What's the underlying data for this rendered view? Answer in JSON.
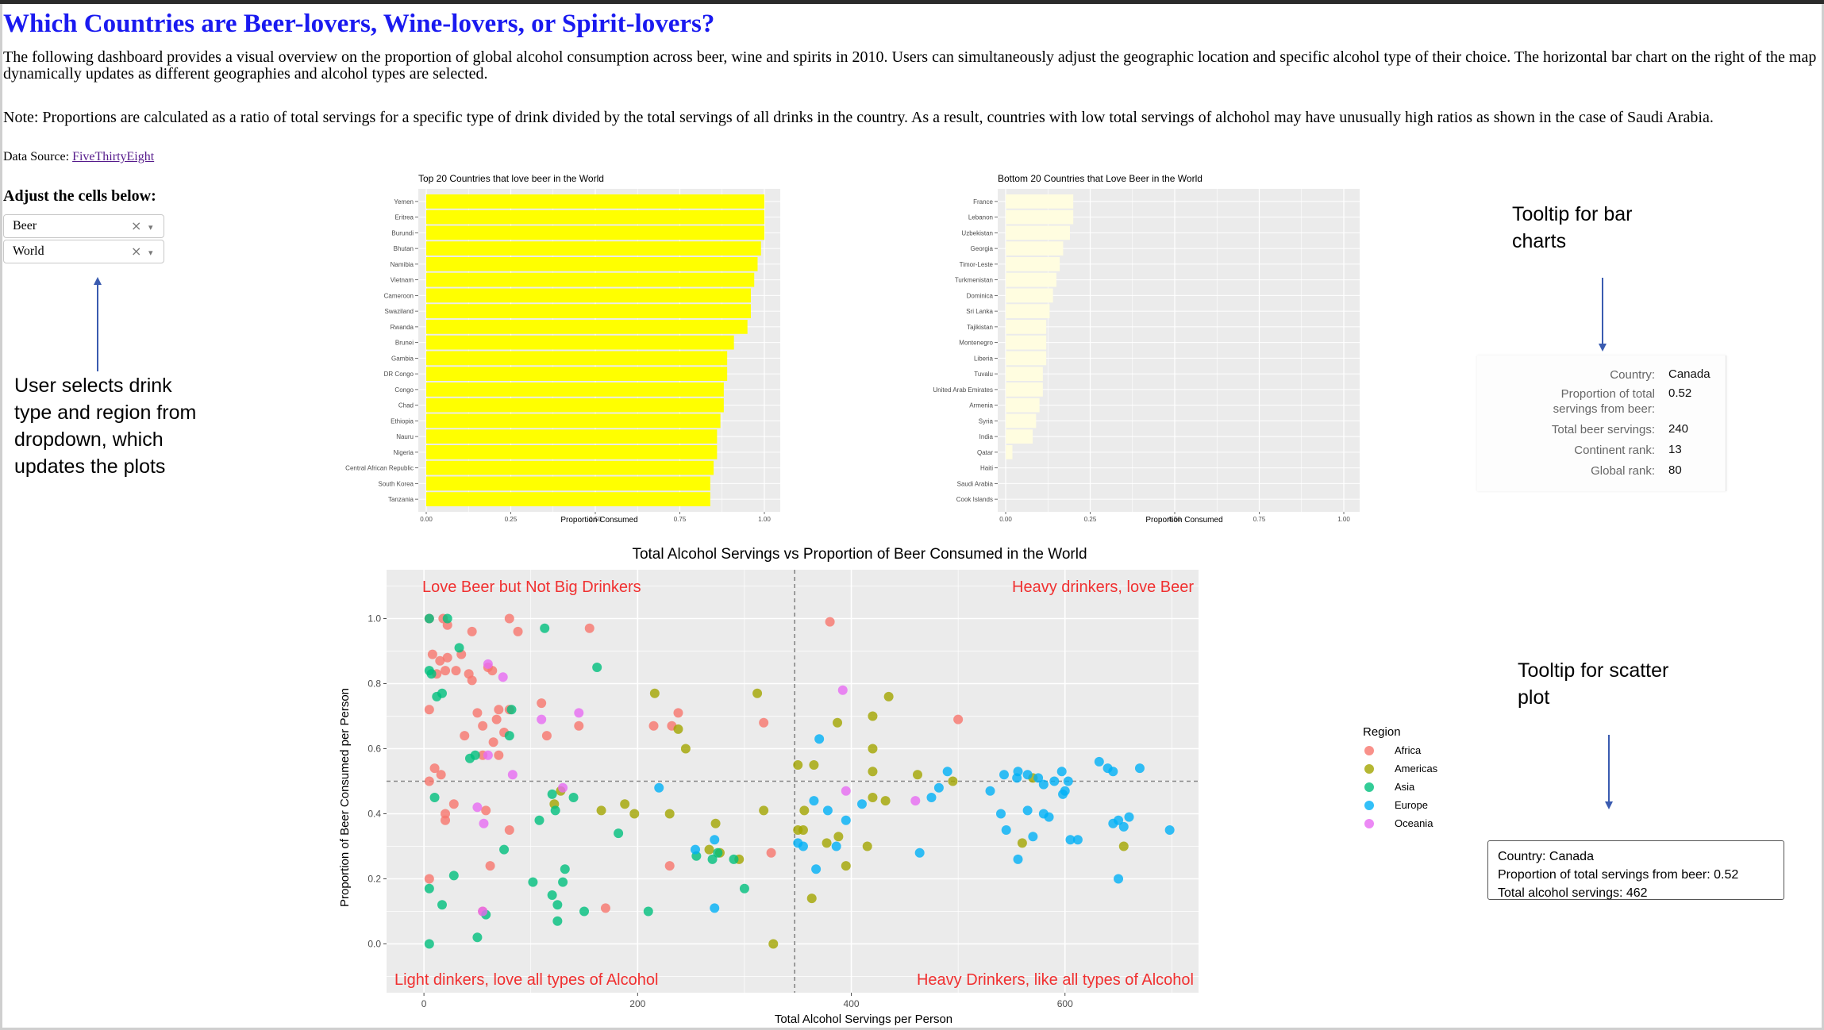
{
  "page": {
    "title": "Which Countries are Beer-lovers, Wine-lovers, or Spirit-lovers?",
    "description": "The following dashboard provides a visual overview on the proportion of global alcohol consumption across beer, wine and spirits in 2010. Users can simultaneously adjust the geographic location and specific alcohol type of their choice. The horizontal bar chart on the right of the map dynamically updates as different geographies and alcohol types are selected.",
    "note": "Note: Proportions are calculated as a ratio of total servings for a specific type of drink divided by the total servings of all drinks in the country. As a result, countries with low total servings of alchohol may have unusually high ratios as shown in the case of Saudi Arabia.",
    "source_label": "Data Source:",
    "source_link": "FiveThirtyEight",
    "adjust_label": "Adjust the cells below:"
  },
  "controls": {
    "drink": {
      "value": "Beer",
      "clear_glyph": "×",
      "caret_glyph": "▾"
    },
    "region": {
      "value": "World",
      "clear_glyph": "×",
      "caret_glyph": "▾"
    }
  },
  "annotations": {
    "user": "User selects drink type and region from dropdown, which updates the plots",
    "bar_tooltip": "Tooltip for bar charts",
    "scatter_tooltip": "Tooltip for scatter plot"
  },
  "bar_tooltip": {
    "rows": [
      {
        "key": "Country:",
        "value": "Canada"
      },
      {
        "key": "Proportion of total servings from beer:",
        "value": "0.52"
      },
      {
        "key": "Total beer servings:",
        "value": "240"
      },
      {
        "key": "Continent rank:",
        "value": "13"
      },
      {
        "key": "Global rank:",
        "value": "80"
      }
    ]
  },
  "scatter_tooltip": {
    "lines": [
      "Country: Canada",
      "Proportion of total servings from beer: 0.52",
      "Total alcohol servings:  462"
    ]
  },
  "colors": {
    "title": "#1a1af0",
    "panel_bg": "#ebebeb",
    "top_bar": "#ffff00",
    "bottom_bar": "#fffde0",
    "quadrant_text": "#f03030",
    "Africa": "#f8766d",
    "Americas": "#a3a500",
    "Asia": "#00bf7d",
    "Europe": "#00b0f6",
    "Oceania": "#e76bf3"
  },
  "chart_data": [
    {
      "type": "bar",
      "orientation": "horizontal",
      "title": "Top 20 Countries that love beer in the World",
      "xlabel": "Proportion Consumed",
      "ylabel": "",
      "xlim": [
        0,
        1
      ],
      "xticks": [
        "0.00",
        "0.25",
        "0.50",
        "0.75",
        "1.00"
      ],
      "categories": [
        "Yemen",
        "Eritrea",
        "Burundi",
        "Bhutan",
        "Namibia",
        "Vietnam",
        "Cameroon",
        "Swaziland",
        "Rwanda",
        "Brunei",
        "Gambia",
        "DR Congo",
        "Congo",
        "Chad",
        "Ethiopia",
        "Nauru",
        "Nigeria",
        "Central African Republic",
        "South Korea",
        "Tanzania"
      ],
      "values": [
        1.0,
        1.0,
        1.0,
        0.99,
        0.98,
        0.97,
        0.96,
        0.96,
        0.95,
        0.91,
        0.89,
        0.89,
        0.88,
        0.88,
        0.87,
        0.86,
        0.86,
        0.85,
        0.84,
        0.84
      ],
      "grid": true
    },
    {
      "type": "bar",
      "orientation": "horizontal",
      "title": "Bottom 20 Countries that Love Beer in the World",
      "xlabel": "Proportion Consumed",
      "ylabel": "",
      "xlim": [
        0,
        1
      ],
      "xticks": [
        "0.00",
        "0.25",
        "0.50",
        "0.75",
        "1.00"
      ],
      "categories": [
        "France",
        "Lebanon",
        "Uzbekistan",
        "Georgia",
        "Timor-Leste",
        "Turkmenistan",
        "Dominica",
        "Sri Lanka",
        "Tajikistan",
        "Montenegro",
        "Liberia",
        "Tuvalu",
        "United Arab Emirates",
        "Armenia",
        "Syria",
        "India",
        "Qatar",
        "Haiti",
        "Saudi Arabia",
        "Cook Islands"
      ],
      "values": [
        0.2,
        0.2,
        0.19,
        0.17,
        0.16,
        0.15,
        0.14,
        0.13,
        0.12,
        0.12,
        0.12,
        0.11,
        0.11,
        0.1,
        0.09,
        0.08,
        0.02,
        0.0,
        0.0,
        0.0
      ],
      "grid": true
    },
    {
      "type": "scatter",
      "title": "Total Alcohol Servings vs Proportion of Beer Consumed in the World",
      "xlabel": "Total Alcohol Servings per Person",
      "ylabel": "Proportion of Beer Consumed per Person",
      "xlim": [
        -35,
        725
      ],
      "ylim": [
        -0.15,
        1.15
      ],
      "xticks": [
        0,
        200,
        400,
        600
      ],
      "yticks": [
        "0.0",
        "0.2",
        "0.4",
        "0.6",
        "0.8",
        "1.0"
      ],
      "ref_lines": {
        "x": 347,
        "y": 0.5
      },
      "quadrant_labels": {
        "top_left": "Love Beer but Not Big Drinkers",
        "top_right": "Heavy drinkers, love Beer",
        "bottom_left": "Light dinkers, love all types of Alcohol",
        "bottom_right": "Heavy Drinkers, like all types of Alcohol"
      },
      "legend_title": "Region",
      "legend_position": "right",
      "series": [
        {
          "name": "Africa",
          "points": [
            [
              5,
              1.0
            ],
            [
              18,
              1.0
            ],
            [
              22,
              0.98
            ],
            [
              80,
              1.0
            ],
            [
              88,
              0.96
            ],
            [
              155,
              0.97
            ],
            [
              380,
              0.99
            ],
            [
              8,
              0.89
            ],
            [
              15,
              0.87
            ],
            [
              20,
              0.84
            ],
            [
              22,
              0.88
            ],
            [
              30,
              0.84
            ],
            [
              35,
              0.89
            ],
            [
              42,
              0.83
            ],
            [
              45,
              0.96
            ],
            [
              60,
              0.85
            ],
            [
              64,
              0.84
            ],
            [
              5,
              0.72
            ],
            [
              12,
              0.83
            ],
            [
              45,
              0.81
            ],
            [
              50,
              0.71
            ],
            [
              55,
              0.67
            ],
            [
              68,
              0.69
            ],
            [
              70,
              0.72
            ],
            [
              75,
              0.65
            ],
            [
              80,
              0.72
            ],
            [
              110,
              0.74
            ],
            [
              115,
              0.64
            ],
            [
              145,
              0.67
            ],
            [
              238,
              0.71
            ],
            [
              215,
              0.67
            ],
            [
              232,
              0.67
            ],
            [
              318,
              0.68
            ],
            [
              500,
              0.69
            ],
            [
              38,
              0.64
            ],
            [
              65,
              0.62
            ],
            [
              5,
              0.5
            ],
            [
              10,
              0.54
            ],
            [
              16,
              0.52
            ],
            [
              55,
              0.58
            ],
            [
              70,
              0.58
            ],
            [
              20,
              0.4
            ],
            [
              28,
              0.43
            ],
            [
              58,
              0.41
            ],
            [
              80,
              0.35
            ],
            [
              20,
              0.38
            ],
            [
              62,
              0.24
            ],
            [
              230,
              0.24
            ],
            [
              325,
              0.28
            ],
            [
              5,
              0.2
            ],
            [
              170,
              0.11
            ],
            [
              55,
              0.1
            ]
          ]
        },
        {
          "name": "Americas",
          "points": [
            [
              216,
              0.77
            ],
            [
              312,
              0.77
            ],
            [
              435,
              0.76
            ],
            [
              420,
              0.7
            ],
            [
              387,
              0.68
            ],
            [
              238,
              0.66
            ],
            [
              245,
              0.6
            ],
            [
              420,
              0.6
            ],
            [
              350,
              0.55
            ],
            [
              365,
              0.55
            ],
            [
              420,
              0.53
            ],
            [
              462,
              0.52
            ],
            [
              495,
              0.5
            ],
            [
              570,
              0.51
            ],
            [
              128,
              0.47
            ],
            [
              122,
              0.43
            ],
            [
              166,
              0.41
            ],
            [
              188,
              0.43
            ],
            [
              197,
              0.4
            ],
            [
              230,
              0.4
            ],
            [
              273,
              0.37
            ],
            [
              318,
              0.41
            ],
            [
              356,
              0.41
            ],
            [
              420,
              0.45
            ],
            [
              432,
              0.44
            ],
            [
              350,
              0.35
            ],
            [
              355,
              0.35
            ],
            [
              377,
              0.31
            ],
            [
              388,
              0.33
            ],
            [
              267,
              0.29
            ],
            [
              277,
              0.28
            ],
            [
              295,
              0.26
            ],
            [
              395,
              0.24
            ],
            [
              415,
              0.3
            ],
            [
              560,
              0.31
            ],
            [
              655,
              0.3
            ],
            [
              363,
              0.14
            ],
            [
              327,
              0.0
            ]
          ]
        },
        {
          "name": "Asia",
          "points": [
            [
              5,
              1.0
            ],
            [
              22,
              1.0
            ],
            [
              113,
              0.97
            ],
            [
              33,
              0.91
            ],
            [
              162,
              0.85
            ],
            [
              5,
              0.84
            ],
            [
              7,
              0.83
            ],
            [
              12,
              0.76
            ],
            [
              17,
              0.77
            ],
            [
              82,
              0.72
            ],
            [
              80,
              0.64
            ],
            [
              43,
              0.57
            ],
            [
              48,
              0.58
            ],
            [
              10,
              0.45
            ],
            [
              120,
              0.46
            ],
            [
              140,
              0.45
            ],
            [
              75,
              0.29
            ],
            [
              123,
              0.41
            ],
            [
              108,
              0.38
            ],
            [
              182,
              0.34
            ],
            [
              255,
              0.27
            ],
            [
              270,
              0.26
            ],
            [
              275,
              0.28
            ],
            [
              290,
              0.26
            ],
            [
              28,
              0.21
            ],
            [
              102,
              0.19
            ],
            [
              132,
              0.23
            ],
            [
              300,
              0.17
            ],
            [
              125,
              0.12
            ],
            [
              5,
              0.17
            ],
            [
              17,
              0.12
            ],
            [
              120,
              0.15
            ],
            [
              130,
              0.19
            ],
            [
              150,
              0.1
            ],
            [
              210,
              0.1
            ],
            [
              125,
              0.07
            ],
            [
              58,
              0.09
            ],
            [
              50,
              0.02
            ],
            [
              5,
              0.0
            ]
          ]
        },
        {
          "name": "Europe",
          "points": [
            [
              370,
              0.63
            ],
            [
              490,
              0.53
            ],
            [
              575,
              0.51
            ],
            [
              555,
              0.51
            ],
            [
              565,
              0.52
            ],
            [
              580,
              0.49
            ],
            [
              600,
              0.47
            ],
            [
              603,
              0.5
            ],
            [
              632,
              0.56
            ],
            [
              597,
              0.53
            ],
            [
              640,
              0.54
            ],
            [
              645,
              0.53
            ],
            [
              670,
              0.54
            ],
            [
              556,
              0.53
            ],
            [
              543,
              0.52
            ],
            [
              482,
              0.48
            ],
            [
              410,
              0.43
            ],
            [
              530,
              0.47
            ],
            [
              590,
              0.5
            ],
            [
              598,
              0.46
            ],
            [
              475,
              0.45
            ],
            [
              220,
              0.48
            ],
            [
              365,
              0.44
            ],
            [
              378,
              0.41
            ],
            [
              565,
              0.41
            ],
            [
              540,
              0.4
            ],
            [
              580,
              0.4
            ],
            [
              585,
              0.39
            ],
            [
              545,
              0.35
            ],
            [
              570,
              0.33
            ],
            [
              605,
              0.32
            ],
            [
              612,
              0.32
            ],
            [
              645,
              0.37
            ],
            [
              650,
              0.38
            ],
            [
              655,
              0.36
            ],
            [
              660,
              0.39
            ],
            [
              698,
              0.35
            ],
            [
              395,
              0.38
            ],
            [
              272,
              0.32
            ],
            [
              254,
              0.29
            ],
            [
              464,
              0.28
            ],
            [
              386,
              0.3
            ],
            [
              350,
              0.31
            ],
            [
              355,
              0.3
            ],
            [
              556,
              0.26
            ],
            [
              367,
              0.23
            ],
            [
              650,
              0.2
            ],
            [
              272,
              0.11
            ]
          ]
        },
        {
          "name": "Oceania",
          "points": [
            [
              392,
              0.78
            ],
            [
              60,
              0.86
            ],
            [
              74,
              0.82
            ],
            [
              145,
              0.71
            ],
            [
              110,
              0.69
            ],
            [
              60,
              0.58
            ],
            [
              83,
              0.52
            ],
            [
              130,
              0.48
            ],
            [
              395,
              0.47
            ],
            [
              460,
              0.44
            ],
            [
              50,
              0.42
            ],
            [
              56,
              0.37
            ],
            [
              55,
              0.1
            ]
          ]
        }
      ]
    }
  ]
}
